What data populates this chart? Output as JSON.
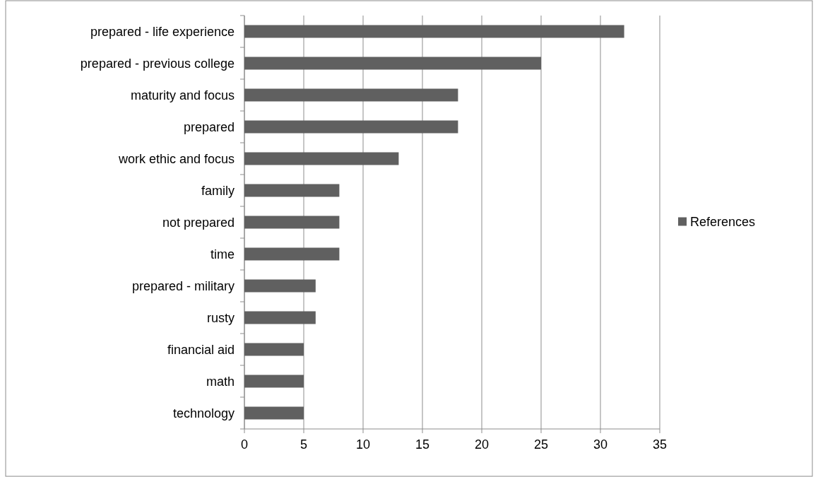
{
  "chart_data": {
    "type": "bar",
    "orientation": "horizontal",
    "categories": [
      "prepared - life experience",
      "prepared - previous college",
      "maturity and focus",
      "prepared",
      "work ethic and focus",
      "family",
      "not prepared",
      "time",
      "prepared - military",
      "rusty",
      "financial aid",
      "math",
      "technology"
    ],
    "series": [
      {
        "name": "References",
        "color": "#606060",
        "values": [
          32,
          25,
          18,
          18,
          13,
          8,
          8,
          8,
          6,
          6,
          5,
          5,
          5
        ]
      }
    ],
    "xlim": [
      0,
      35
    ],
    "xticks": [
      0,
      5,
      10,
      15,
      20,
      25,
      30,
      35
    ],
    "grid": "x",
    "legend": "right"
  }
}
